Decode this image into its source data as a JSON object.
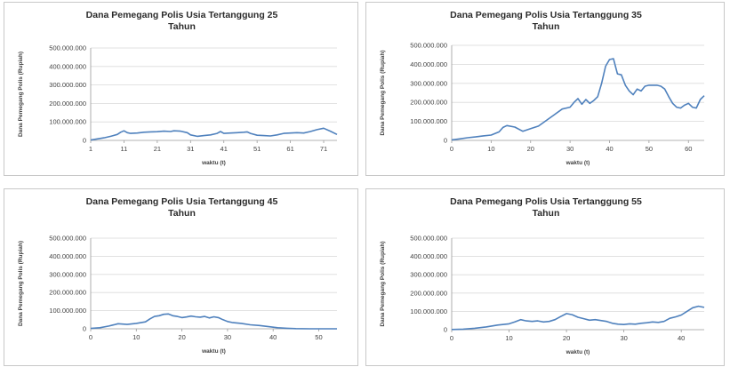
{
  "chart_data": [
    {
      "type": "line",
      "title": "Dana Pemegang Polis Usia Tertanggung 25 Tahun",
      "title_lines": [
        "Dana Pemegang Polis Usia Tertanggung 25",
        "Tahun"
      ],
      "xlabel": "waktu (t)",
      "ylabel": "Dana Pemegang Polis (Rupiah)",
      "ylim": [
        0,
        500000000
      ],
      "yticks": [
        "0",
        "100.000.000",
        "200.000.000",
        "300.000.000",
        "400.000.000",
        "500.000.000"
      ],
      "xlim": [
        1,
        75
      ],
      "xticks": [
        1,
        11,
        21,
        31,
        41,
        51,
        61,
        71
      ],
      "grid": true,
      "series": [
        {
          "points": [
            [
              1,
              2000000
            ],
            [
              3,
              8000000
            ],
            [
              5,
              14000000
            ],
            [
              7,
              22000000
            ],
            [
              9,
              32000000
            ],
            [
              10,
              44000000
            ],
            [
              11,
              52000000
            ],
            [
              12,
              42000000
            ],
            [
              13,
              38000000
            ],
            [
              15,
              40000000
            ],
            [
              17,
              44000000
            ],
            [
              19,
              46000000
            ],
            [
              21,
              47000000
            ],
            [
              23,
              50000000
            ],
            [
              25,
              48000000
            ],
            [
              26,
              52000000
            ],
            [
              28,
              50000000
            ],
            [
              30,
              42000000
            ],
            [
              31,
              30000000
            ],
            [
              33,
              22000000
            ],
            [
              35,
              26000000
            ],
            [
              37,
              30000000
            ],
            [
              39,
              38000000
            ],
            [
              40,
              48000000
            ],
            [
              41,
              38000000
            ],
            [
              43,
              40000000
            ],
            [
              45,
              42000000
            ],
            [
              47,
              44000000
            ],
            [
              48,
              46000000
            ],
            [
              49,
              38000000
            ],
            [
              51,
              28000000
            ],
            [
              53,
              26000000
            ],
            [
              55,
              24000000
            ],
            [
              57,
              30000000
            ],
            [
              59,
              38000000
            ],
            [
              61,
              40000000
            ],
            [
              63,
              42000000
            ],
            [
              65,
              40000000
            ],
            [
              67,
              48000000
            ],
            [
              69,
              58000000
            ],
            [
              71,
              66000000
            ],
            [
              73,
              50000000
            ],
            [
              75,
              32000000
            ]
          ]
        }
      ]
    },
    {
      "type": "line",
      "title": "Dana Pemegang Polis Usia Tertanggung 35 Tahun",
      "title_lines": [
        "Dana Pemegang Polis Usia Tertanggung 35",
        "Tahun"
      ],
      "xlabel": "waktu (t)",
      "ylabel": "Dana Pemegang Polis (Rupiah)",
      "ylim": [
        0,
        500000000
      ],
      "yticks": [
        "0",
        "100.000.000",
        "200.000.000",
        "300.000.000",
        "400.000.000",
        "500.000.000"
      ],
      "xlim": [
        0,
        64
      ],
      "xticks": [
        0,
        10,
        20,
        30,
        40,
        50,
        60
      ],
      "grid": true,
      "series": [
        {
          "points": [
            [
              0,
              3000000
            ],
            [
              2,
              8000000
            ],
            [
              4,
              14000000
            ],
            [
              6,
              18000000
            ],
            [
              8,
              24000000
            ],
            [
              10,
              28000000
            ],
            [
              12,
              45000000
            ],
            [
              13,
              68000000
            ],
            [
              14,
              78000000
            ],
            [
              16,
              70000000
            ],
            [
              18,
              48000000
            ],
            [
              20,
              62000000
            ],
            [
              22,
              75000000
            ],
            [
              24,
              105000000
            ],
            [
              26,
              135000000
            ],
            [
              28,
              165000000
            ],
            [
              30,
              175000000
            ],
            [
              31,
              200000000
            ],
            [
              32,
              220000000
            ],
            [
              33,
              190000000
            ],
            [
              34,
              215000000
            ],
            [
              35,
              195000000
            ],
            [
              36,
              210000000
            ],
            [
              37,
              230000000
            ],
            [
              38,
              300000000
            ],
            [
              39,
              390000000
            ],
            [
              40,
              425000000
            ],
            [
              41,
              430000000
            ],
            [
              42,
              350000000
            ],
            [
              43,
              345000000
            ],
            [
              44,
              290000000
            ],
            [
              45,
              260000000
            ],
            [
              46,
              240000000
            ],
            [
              47,
              270000000
            ],
            [
              48,
              260000000
            ],
            [
              49,
              285000000
            ],
            [
              50,
              290000000
            ],
            [
              52,
              290000000
            ],
            [
              53,
              285000000
            ],
            [
              54,
              270000000
            ],
            [
              55,
              230000000
            ],
            [
              56,
              195000000
            ],
            [
              57,
              175000000
            ],
            [
              58,
              170000000
            ],
            [
              59,
              185000000
            ],
            [
              60,
              195000000
            ],
            [
              61,
              175000000
            ],
            [
              62,
              170000000
            ],
            [
              63,
              215000000
            ],
            [
              64,
              235000000
            ]
          ]
        }
      ]
    },
    {
      "type": "line",
      "title": "Dana Pemegang Polis Usia Tertanggung 45 Tahun",
      "title_lines": [
        "Dana Pemegang Polis Usia Tertanggung 45",
        "Tahun"
      ],
      "xlabel": "waktu (t)",
      "ylabel": "Dana Pemegang Polis (Rupiah)",
      "ylim": [
        0,
        500000000
      ],
      "yticks": [
        "0",
        "100.000.000",
        "200.000.000",
        "300.000.000",
        "400.000.000",
        "500.000.000"
      ],
      "xlim": [
        0,
        54
      ],
      "xticks": [
        0,
        10,
        20,
        30,
        40,
        50
      ],
      "grid": true,
      "series": [
        {
          "points": [
            [
              0,
              2000000
            ],
            [
              2,
              6000000
            ],
            [
              4,
              15000000
            ],
            [
              6,
              28000000
            ],
            [
              8,
              24000000
            ],
            [
              10,
              30000000
            ],
            [
              12,
              38000000
            ],
            [
              13,
              55000000
            ],
            [
              14,
              68000000
            ],
            [
              15,
              72000000
            ],
            [
              16,
              80000000
            ],
            [
              17,
              82000000
            ],
            [
              18,
              72000000
            ],
            [
              19,
              68000000
            ],
            [
              20,
              62000000
            ],
            [
              21,
              65000000
            ],
            [
              22,
              70000000
            ],
            [
              23,
              66000000
            ],
            [
              24,
              64000000
            ],
            [
              25,
              68000000
            ],
            [
              26,
              60000000
            ],
            [
              27,
              66000000
            ],
            [
              28,
              62000000
            ],
            [
              29,
              50000000
            ],
            [
              30,
              40000000
            ],
            [
              31,
              35000000
            ],
            [
              33,
              30000000
            ],
            [
              35,
              22000000
            ],
            [
              37,
              18000000
            ],
            [
              39,
              12000000
            ],
            [
              41,
              6000000
            ],
            [
              43,
              3000000
            ],
            [
              45,
              1000000
            ],
            [
              48,
              0
            ],
            [
              54,
              0
            ]
          ]
        }
      ]
    },
    {
      "type": "line",
      "title": "Dana Pemegang Polis Usia Tertanggung 55 Tahun",
      "title_lines": [
        "Dana Pemegang Polis Usia Tertanggung 55",
        "Tahun"
      ],
      "xlabel": "waktu (t)",
      "ylabel": "Dana Pemegang Polis (Rupiah)",
      "ylim": [
        0,
        500000000
      ],
      "yticks": [
        "0",
        "100.000.000",
        "200.000.000",
        "300.000.000",
        "400.000.000",
        "500.000.000"
      ],
      "xlim": [
        0,
        44
      ],
      "xticks": [
        0,
        10,
        20,
        30,
        40
      ],
      "grid": true,
      "series": [
        {
          "points": [
            [
              0,
              1000000
            ],
            [
              2,
              3000000
            ],
            [
              4,
              8000000
            ],
            [
              6,
              15000000
            ],
            [
              8,
              25000000
            ],
            [
              10,
              32000000
            ],
            [
              11,
              42000000
            ],
            [
              12,
              55000000
            ],
            [
              13,
              48000000
            ],
            [
              14,
              45000000
            ],
            [
              15,
              48000000
            ],
            [
              16,
              42000000
            ],
            [
              17,
              45000000
            ],
            [
              18,
              55000000
            ],
            [
              19,
              72000000
            ],
            [
              20,
              88000000
            ],
            [
              21,
              82000000
            ],
            [
              22,
              68000000
            ],
            [
              23,
              60000000
            ],
            [
              24,
              52000000
            ],
            [
              25,
              55000000
            ],
            [
              26,
              50000000
            ],
            [
              27,
              45000000
            ],
            [
              28,
              35000000
            ],
            [
              29,
              30000000
            ],
            [
              30,
              28000000
            ],
            [
              31,
              32000000
            ],
            [
              32,
              30000000
            ],
            [
              33,
              35000000
            ],
            [
              34,
              38000000
            ],
            [
              35,
              42000000
            ],
            [
              36,
              40000000
            ],
            [
              37,
              45000000
            ],
            [
              38,
              62000000
            ],
            [
              39,
              70000000
            ],
            [
              40,
              80000000
            ],
            [
              41,
              100000000
            ],
            [
              42,
              120000000
            ],
            [
              43,
              128000000
            ],
            [
              44,
              122000000
            ]
          ]
        }
      ]
    }
  ],
  "colors": {
    "series": "#4f81bd",
    "grid": "#d9d9d9",
    "panel_border": "#c8c8c8"
  }
}
